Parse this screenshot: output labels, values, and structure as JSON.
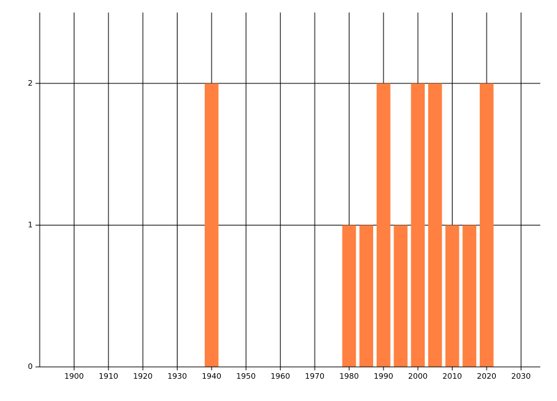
{
  "chart_data": {
    "type": "bar",
    "x": [
      1940,
      1980,
      1985,
      1990,
      1995,
      2000,
      2005,
      2010,
      2015,
      2020
    ],
    "values": [
      2,
      1,
      1,
      2,
      1,
      2,
      2,
      1,
      1,
      2
    ],
    "color": "#ff8040",
    "xlim": [
      1890,
      2035
    ],
    "xticks": [
      1900,
      1910,
      1920,
      1930,
      1940,
      1950,
      1960,
      1970,
      1980,
      1990,
      2000,
      2010,
      2020,
      2030
    ],
    "ylim": [
      0,
      2.5
    ],
    "yticks": [
      0,
      1,
      2
    ],
    "grid": true
  }
}
